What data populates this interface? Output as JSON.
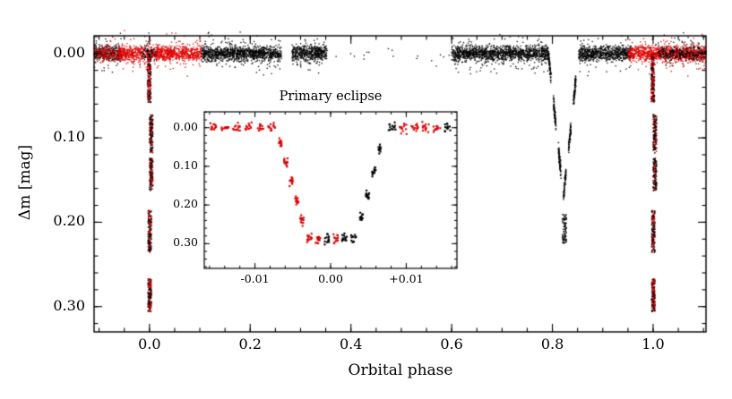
{
  "chart_data": {
    "type": "scatter",
    "title": "",
    "xlabel": "Orbital phase",
    "ylabel": "Δm [mag]",
    "x_range": [
      -0.11,
      1.105
    ],
    "y_range_top_to_bottom": [
      -0.021,
      0.33
    ],
    "y_axis_inverted": true,
    "x_ticks": {
      "values": [
        0.0,
        0.2,
        0.4,
        0.6,
        0.8,
        1.0
      ],
      "labels": [
        "0.0",
        "0.2",
        "0.4",
        "0.6",
        "0.8",
        "1.0"
      ],
      "minor_step": 0.05
    },
    "y_ticks": {
      "values": [
        0.0,
        0.1,
        0.2,
        0.3
      ],
      "labels": [
        "0.00",
        "0.10",
        "0.20",
        "0.30"
      ],
      "minor_step": 0.02
    },
    "colors": {
      "black_series": "#000000",
      "red_series": "#dd0000"
    },
    "series_description": "Eclipsing binary differential light curve: out-of-eclipse band at Δm≈0.00, primary eclipses of depth ≈0.30 mag at phases 0.0 and 1.0, secondary eclipse of depth ≈0.17 mag at phase ≈0.82; two photometric datasets shown in black and red; data gap between phases ≈0.35 and 0.60",
    "band": {
      "level": 0.0,
      "sigma_core": 0.0042,
      "sigma_tail": 0.01,
      "segments": [
        {
          "x0": -0.11,
          "x1": -0.056,
          "color": "black",
          "density": 0.9
        },
        {
          "x0": -0.11,
          "x1": -0.056,
          "color": "red",
          "density": 0.5
        },
        {
          "x0": -0.06,
          "x1": -0.016,
          "color": "red",
          "density": 1.0
        },
        {
          "x0": -0.016,
          "x1": 0.014,
          "color": "red",
          "density": 0.7
        },
        {
          "x0": -0.016,
          "x1": 0.014,
          "color": "black",
          "density": 0.3
        },
        {
          "x0": 0.014,
          "x1": 0.104,
          "color": "red",
          "density": 1.0
        },
        {
          "x0": 0.104,
          "x1": 0.262,
          "color": "black",
          "density": 1.0
        },
        {
          "x0": 0.283,
          "x1": 0.352,
          "color": "black",
          "density": 1.0
        },
        {
          "x0": 0.352,
          "x1": 0.6,
          "color": "black",
          "density": 0.01
        },
        {
          "x0": 0.6,
          "x1": 0.793,
          "color": "black",
          "density": 1.0
        },
        {
          "x0": 0.852,
          "x1": 0.956,
          "color": "black",
          "density": 1.0
        },
        {
          "x0": 0.95,
          "x1": 1.105,
          "color": "red",
          "density": 1.0
        },
        {
          "x0": 1.01,
          "x1": 1.105,
          "color": "black",
          "density": 0.4
        }
      ]
    },
    "primary_eclipse": {
      "phases": [
        0.0,
        1.0
      ],
      "max_depth": 0.3,
      "clusters": [
        {
          "dx0": -0.004,
          "dx1": 0.003,
          "y0": 0.0,
          "y1": 0.058,
          "n": 230,
          "red_frac": 0.55
        },
        {
          "dx0": 0.0,
          "dx1": 0.007,
          "y0": 0.072,
          "y1": 0.118,
          "n": 170,
          "red_frac": 0.3
        },
        {
          "dx0": 0.0,
          "dx1": 0.007,
          "y0": 0.124,
          "y1": 0.163,
          "n": 150,
          "red_frac": 0.3
        },
        {
          "dx0": -0.003,
          "dx1": 0.004,
          "y0": 0.186,
          "y1": 0.236,
          "n": 190,
          "red_frac": 0.45
        },
        {
          "dx0": -0.003,
          "dx1": 0.004,
          "y0": 0.267,
          "y1": 0.306,
          "n": 190,
          "red_frac": 0.55
        }
      ]
    },
    "secondary_eclipse": {
      "center": 0.822,
      "half_width": 0.03,
      "depth": 0.17,
      "dash_count": 12,
      "n_points": 900,
      "color": "black",
      "extra_cluster": {
        "x0": 0.82,
        "x1": 0.828,
        "y0": 0.19,
        "y1": 0.225,
        "n": 80
      }
    },
    "inset": {
      "title": "Primary eclipse",
      "x_range": [
        -0.0167,
        0.0167
      ],
      "y_range_top_to_bottom": [
        -0.041,
        0.364
      ],
      "y_axis_inverted": true,
      "x_ticks": {
        "values": [
          -0.01,
          0.0,
          0.01
        ],
        "labels": [
          "-0.01",
          "0.00",
          "+0.01"
        ],
        "minor_step": 0.002
      },
      "y_ticks": {
        "values": [
          0.0,
          0.1,
          0.2,
          0.3
        ],
        "labels": [
          "0.00",
          "0.10",
          "0.20",
          "0.30"
        ],
        "minor_step": 0.02
      },
      "pts_per_dash": 13,
      "sigma_y": 0.006,
      "segments": [
        {
          "x0": -0.0163,
          "x1": -0.007,
          "y0": 0.0,
          "y1": 0.0,
          "red_frac": 1.0,
          "period": 0.0016
        },
        {
          "x0": -0.007,
          "x1": -0.0034,
          "y0": 0.015,
          "y1": 0.262,
          "red_frac": 1.0,
          "period": 0.0008
        },
        {
          "x0": -0.0034,
          "x1": 0.0036,
          "y0": 0.287,
          "y1": 0.287,
          "red_frac": 0.55,
          "period": 0.0011
        },
        {
          "x0": 0.0036,
          "x1": 0.007,
          "y0": 0.262,
          "y1": 0.025,
          "red_frac": 0.0,
          "period": 0.0008
        },
        {
          "x0": 0.0074,
          "x1": 0.0163,
          "y0": 0.001,
          "y1": 0.001,
          "red_frac": 0.8,
          "period": 0.0016
        }
      ]
    }
  }
}
